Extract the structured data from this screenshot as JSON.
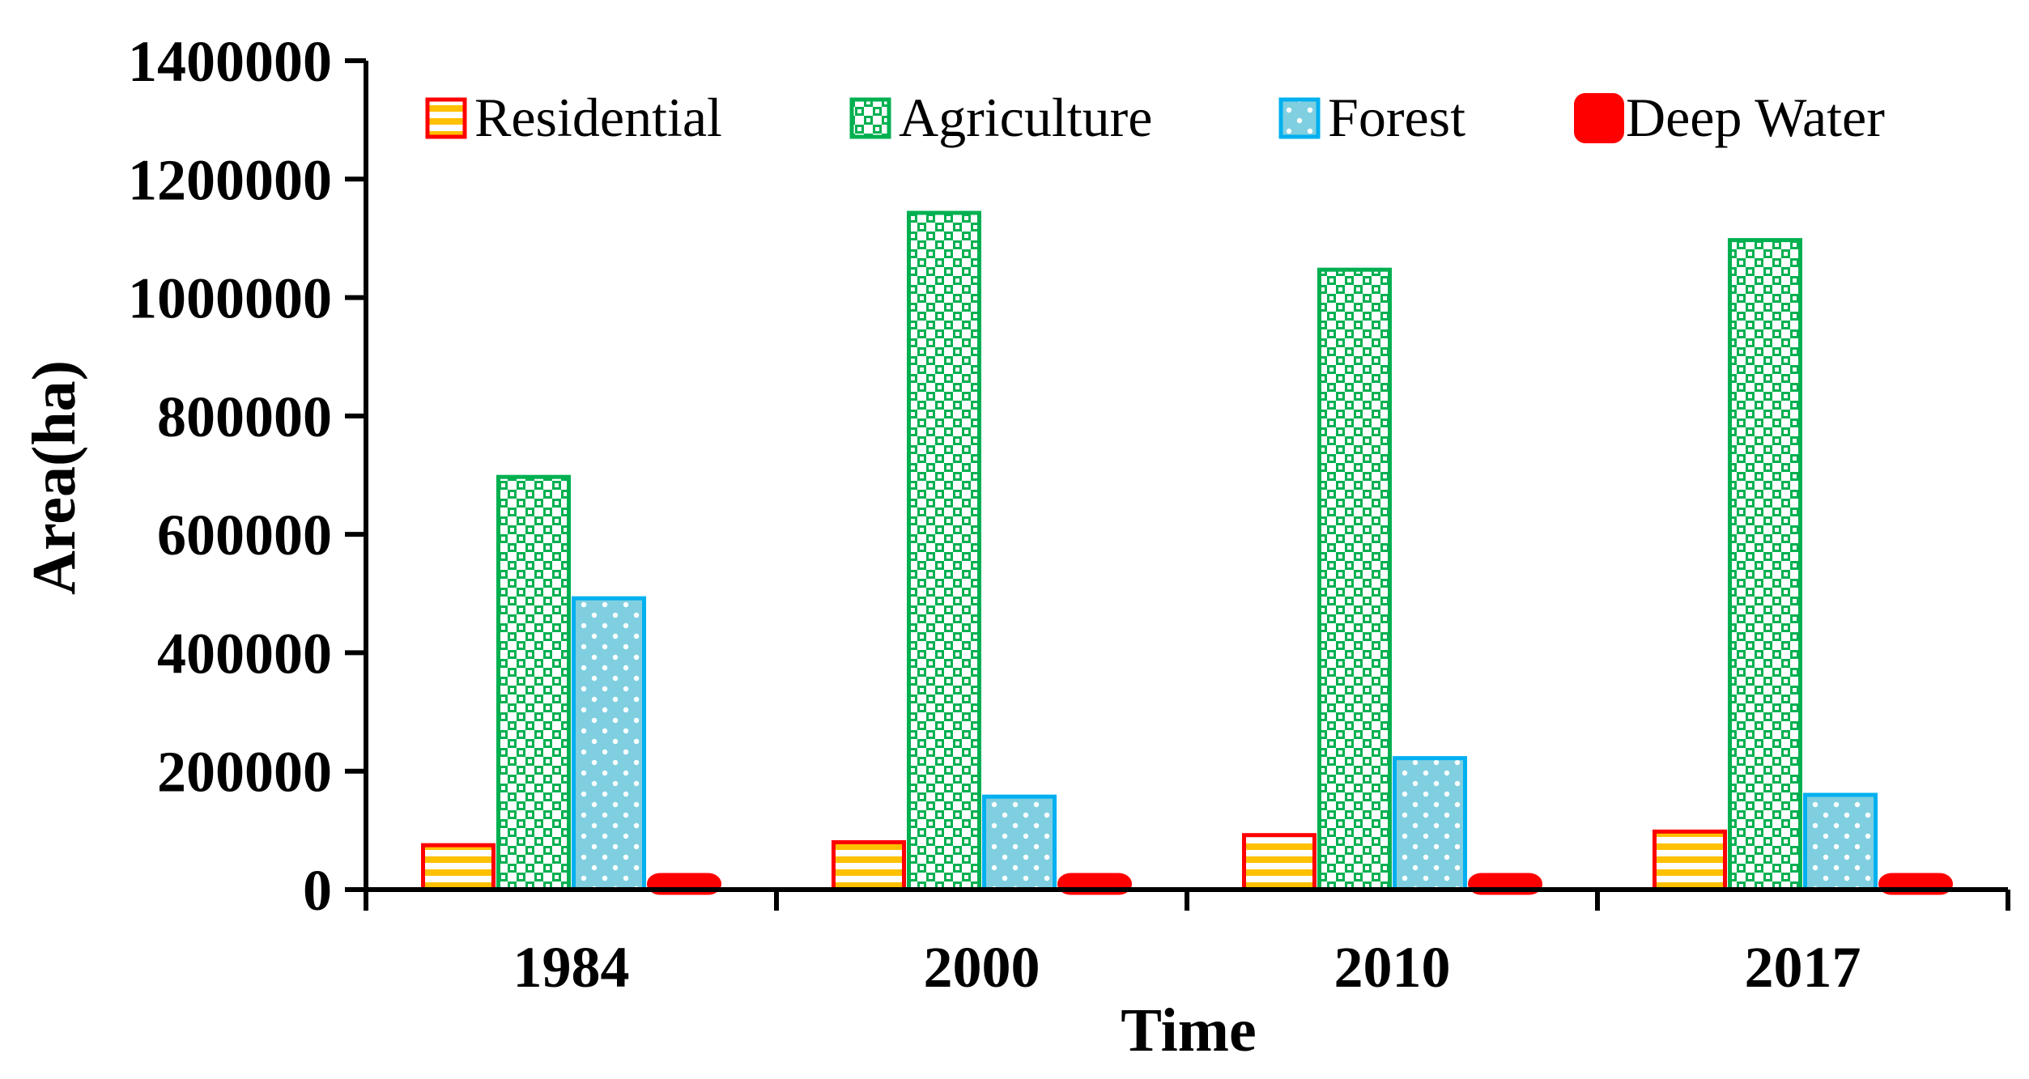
{
  "chart_data": {
    "type": "bar",
    "title": "",
    "xlabel": "Time",
    "ylabel": "Area(ha)",
    "ylim": [
      0,
      1400000
    ],
    "yticks": [
      "0",
      "200000",
      "400000",
      "600000",
      "800000",
      "1000000",
      "1200000",
      "1400000"
    ],
    "ytick_values": [
      0,
      200000,
      400000,
      600000,
      800000,
      1000000,
      1200000,
      1400000
    ],
    "categories": [
      "1984",
      "2000",
      "2010",
      "2017"
    ],
    "legend_position": "top",
    "grid": false,
    "series": [
      {
        "name": "Residential",
        "values": [
          75000,
          80000,
          92000,
          98000
        ],
        "stroke": "#ff0000",
        "fill": "#ffc000",
        "pattern": "horizontal-stripes"
      },
      {
        "name": "Agriculture",
        "values": [
          697000,
          1143000,
          1047000,
          1097000
        ],
        "stroke": "#00b050",
        "fill": "#ffffff",
        "pattern": "checker"
      },
      {
        "name": "Forest",
        "values": [
          492000,
          157000,
          222000,
          160000
        ],
        "stroke": "#00b0f0",
        "fill": "#7fcfe0",
        "pattern": "dots"
      },
      {
        "name": "Deep Water",
        "values": [
          20000,
          12000,
          18000,
          14000
        ],
        "stroke": "#ff0000",
        "fill": "#ff0000",
        "pattern": "solid"
      }
    ]
  }
}
